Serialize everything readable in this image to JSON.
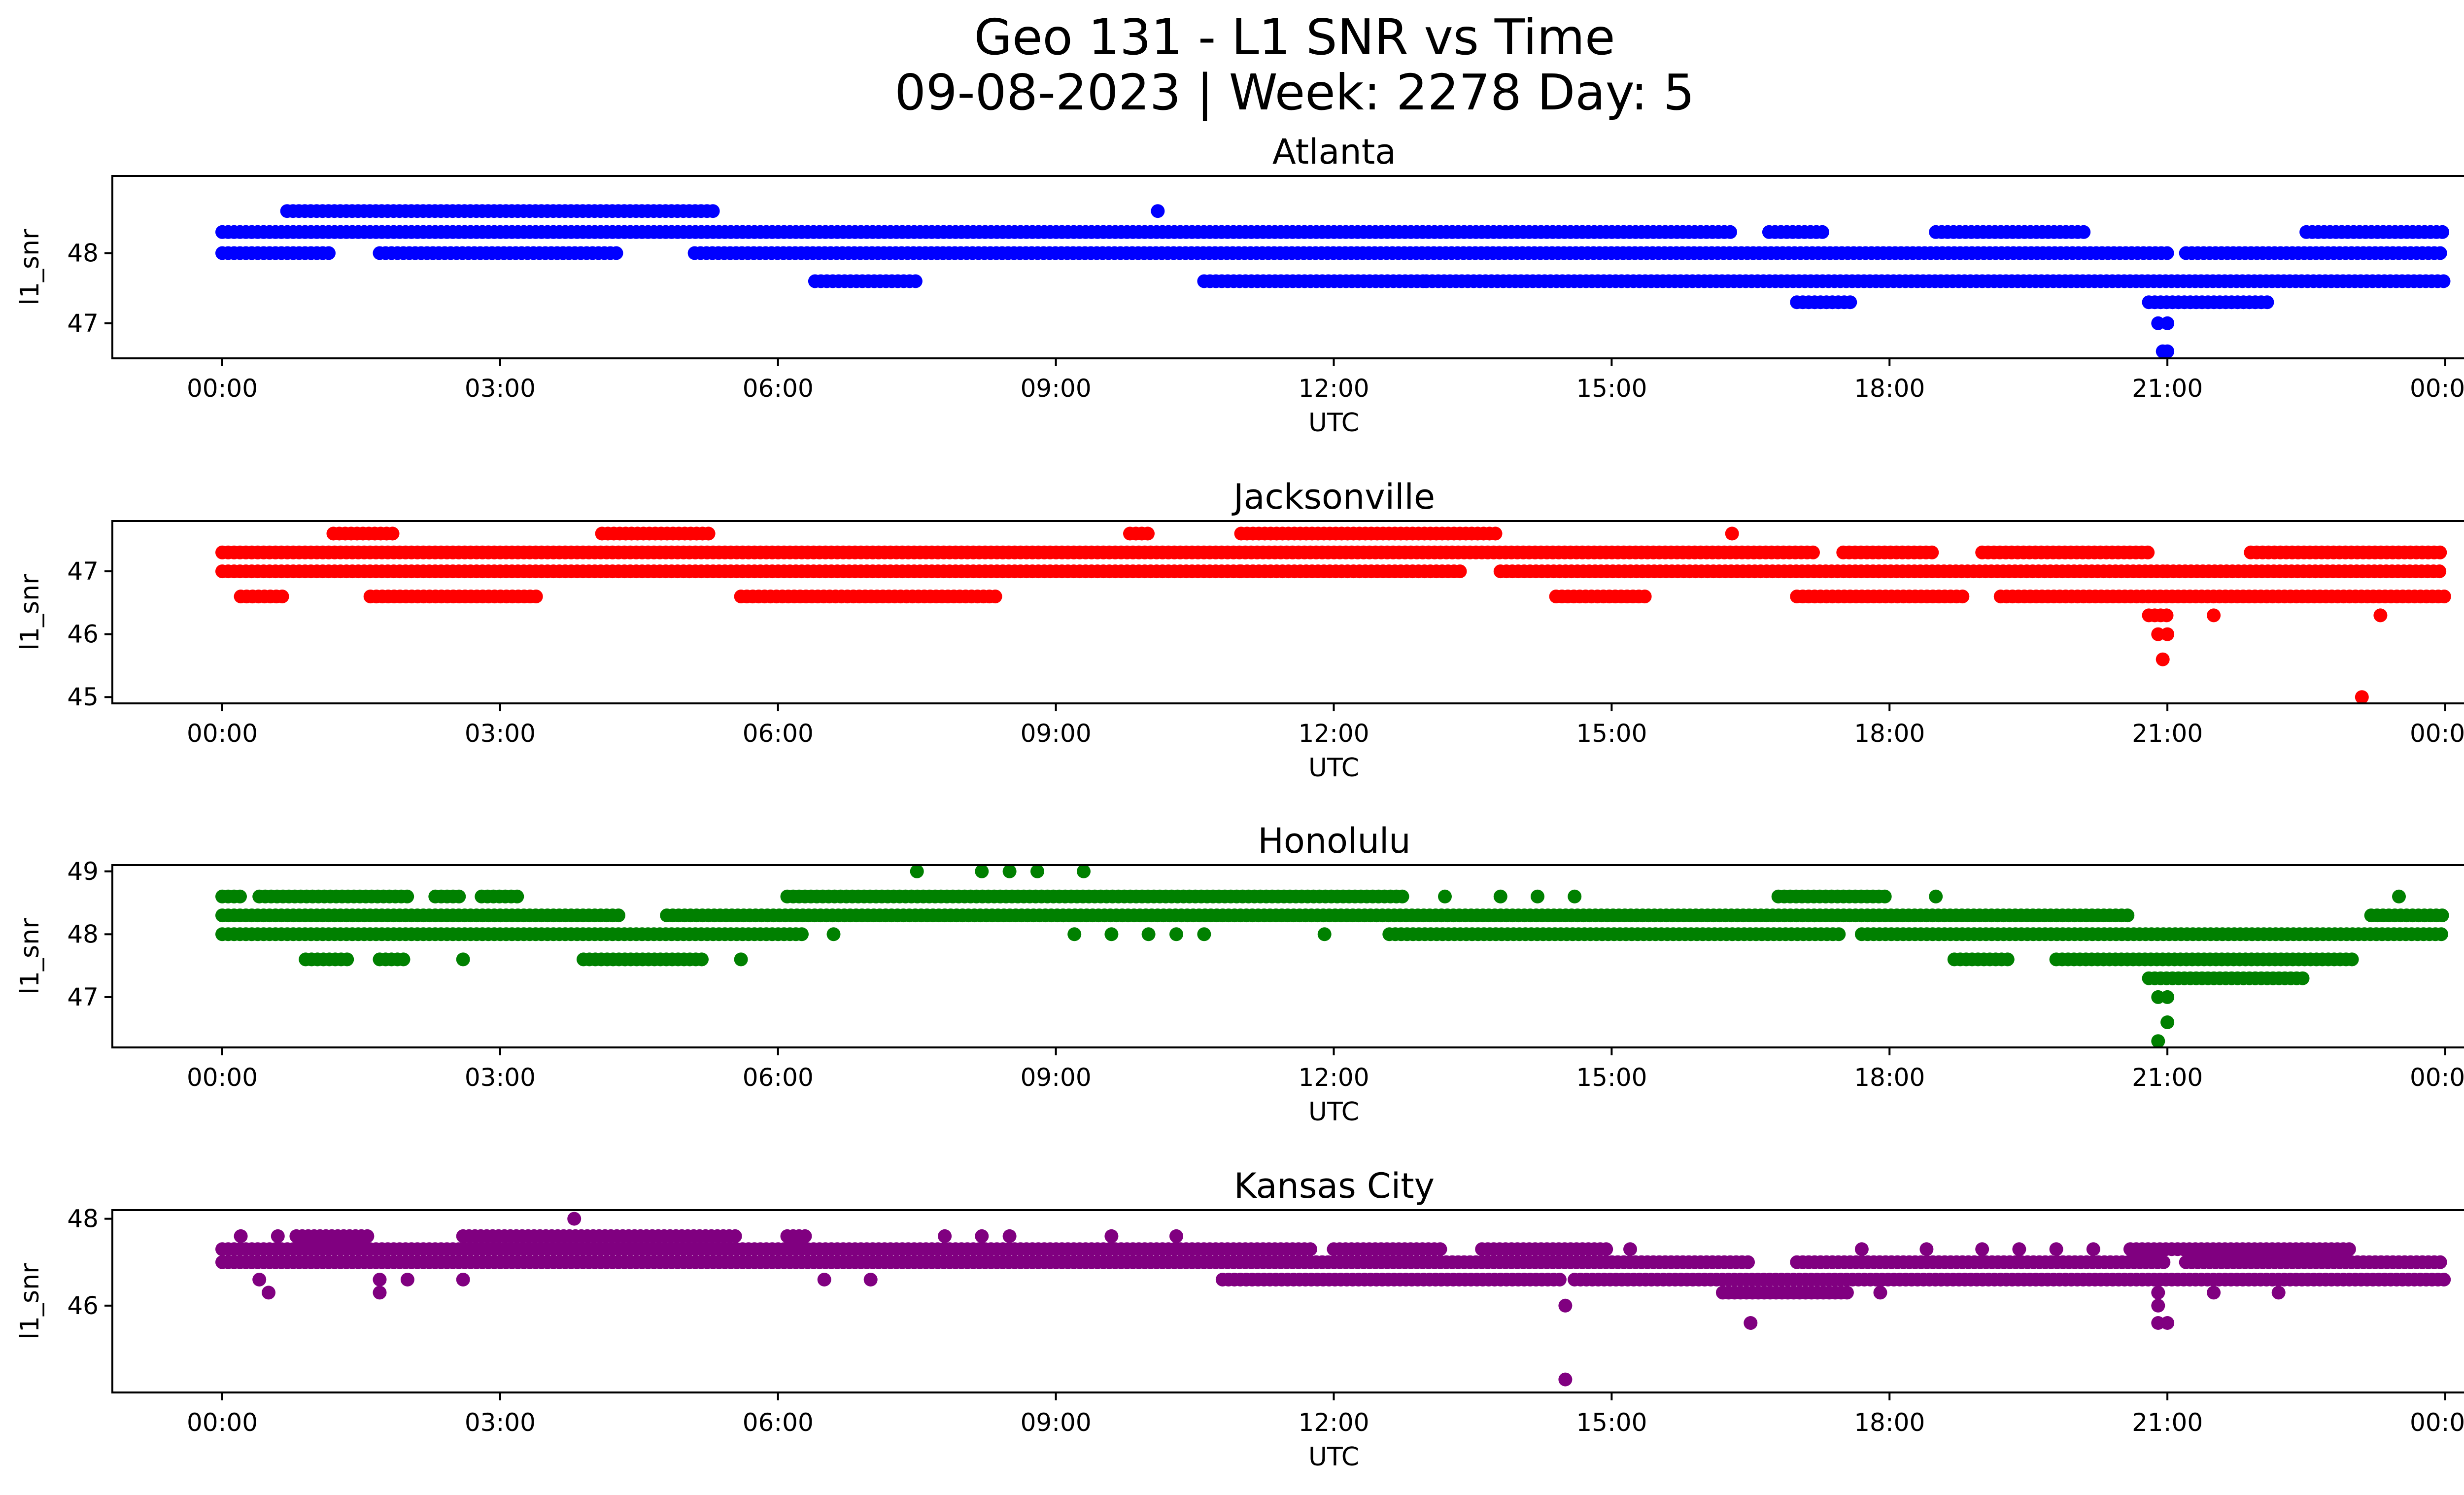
{
  "figure": {
    "title_line1": "Geo 131 - L1 SNR vs Time",
    "title_line2": "09-08-2023 | Week: 2278 Day: 5"
  },
  "chart_data": [
    {
      "type": "scatter",
      "title": "Atlanta",
      "xlabel": "UTC",
      "ylabel": "l1_snr",
      "color": "#0000ff",
      "xlim": [
        0,
        24
      ],
      "ylim": [
        46.5,
        49.1
      ],
      "x_ticks": [
        "00:00",
        "03:00",
        "06:00",
        "09:00",
        "12:00",
        "15:00",
        "18:00",
        "21:00",
        "00:00"
      ],
      "y_ticks": [
        47,
        48
      ],
      "bands": [
        {
          "y": 48.6,
          "segments": [
            [
              0.7,
              5.3
            ]
          ]
        },
        {
          "y": 48.6,
          "points": [
            10.1
          ]
        },
        {
          "y": 48.3,
          "segments": [
            [
              0.0,
              16.3
            ],
            [
              16.7,
              17.3
            ],
            [
              18.5,
              20.1
            ],
            [
              22.5,
              24.0
            ]
          ]
        },
        {
          "y": 48.0,
          "segments": [
            [
              0.0,
              1.2
            ],
            [
              1.7,
              4.3
            ],
            [
              5.1,
              21.0
            ],
            [
              21.2,
              24.0
            ]
          ]
        },
        {
          "y": 47.6,
          "segments": [
            [
              6.4,
              7.5
            ],
            [
              10.6,
              13.0
            ],
            [
              13.0,
              24.0
            ]
          ]
        },
        {
          "y": 47.3,
          "segments": [
            [
              17.0,
              17.6
            ],
            [
              20.8,
              22.1
            ]
          ]
        },
        {
          "y": 47.0,
          "points": [
            20.9,
            21.0
          ]
        },
        {
          "y": 46.6,
          "points": [
            20.95,
            21.0
          ]
        }
      ]
    },
    {
      "type": "scatter",
      "title": "Jacksonville",
      "xlabel": "UTC",
      "ylabel": "l1_snr",
      "color": "#ff0000",
      "xlim": [
        0,
        24
      ],
      "ylim": [
        44.9,
        47.8
      ],
      "x_ticks": [
        "00:00",
        "03:00",
        "06:00",
        "09:00",
        "12:00",
        "15:00",
        "18:00",
        "21:00",
        "00:00"
      ],
      "y_ticks": [
        45,
        46,
        47
      ],
      "bands": [
        {
          "y": 47.6,
          "segments": [
            [
              1.2,
              1.9
            ],
            [
              4.1,
              5.3
            ],
            [
              9.8,
              10.0
            ],
            [
              11.0,
              13.8
            ]
          ]
        },
        {
          "y": 47.6,
          "points": [
            16.3
          ]
        },
        {
          "y": 47.3,
          "segments": [
            [
              0.0,
              17.2
            ],
            [
              17.5,
              18.5
            ],
            [
              19.0,
              20.8
            ],
            [
              21.9,
              24.0
            ]
          ]
        },
        {
          "y": 47.0,
          "segments": [
            [
              0.0,
              11.0
            ],
            [
              11.0,
              13.4
            ],
            [
              13.8,
              21.0
            ],
            [
              21.0,
              24.0
            ]
          ]
        },
        {
          "y": 46.6,
          "segments": [
            [
              0.2,
              0.7
            ],
            [
              1.6,
              3.4
            ],
            [
              5.6,
              8.4
            ],
            [
              14.4,
              15.4
            ],
            [
              17.0,
              18.8
            ],
            [
              19.2,
              24.0
            ]
          ]
        },
        {
          "y": 46.3,
          "segments": [
            [
              20.8,
              21.0
            ]
          ]
        },
        {
          "y": 46.3,
          "points": [
            21.5,
            23.3
          ]
        },
        {
          "y": 46.0,
          "points": [
            20.9,
            21.0
          ]
        },
        {
          "y": 45.6,
          "points": [
            20.95
          ]
        },
        {
          "y": 45.0,
          "points": [
            23.1
          ]
        }
      ]
    },
    {
      "type": "scatter",
      "title": "Honolulu",
      "xlabel": "UTC",
      "ylabel": "l1_snr",
      "color": "#008000",
      "xlim": [
        0,
        24
      ],
      "ylim": [
        46.2,
        49.1
      ],
      "x_ticks": [
        "00:00",
        "03:00",
        "06:00",
        "09:00",
        "12:00",
        "15:00",
        "18:00",
        "21:00",
        "00:00"
      ],
      "y_ticks": [
        47,
        48,
        49
      ],
      "bands": [
        {
          "y": 49.0,
          "points": [
            7.5,
            8.2,
            8.5,
            8.8,
            9.3
          ]
        },
        {
          "y": 48.6,
          "segments": [
            [
              0.0,
              0.2
            ],
            [
              0.4,
              2.0
            ],
            [
              2.3,
              2.6
            ],
            [
              2.8,
              3.2
            ],
            [
              6.1,
              12.8
            ],
            [
              16.8,
              18.0
            ]
          ]
        },
        {
          "y": 48.6,
          "points": [
            13.2,
            13.8,
            14.2,
            14.6,
            18.5,
            23.5
          ]
        },
        {
          "y": 48.3,
          "segments": [
            [
              0.0,
              4.3
            ],
            [
              4.8,
              20.6
            ],
            [
              23.2,
              24.0
            ]
          ]
        },
        {
          "y": 48.0,
          "segments": [
            [
              0.0,
              6.3
            ],
            [
              12.6,
              17.5
            ],
            [
              17.7,
              24.0
            ]
          ]
        },
        {
          "y": 48.0,
          "points": [
            6.6,
            9.2,
            9.6,
            10.0,
            10.3,
            10.6,
            11.9
          ]
        },
        {
          "y": 47.6,
          "segments": [
            [
              0.9,
              1.4
            ],
            [
              1.7,
              2.0
            ],
            [
              3.9,
              5.2
            ],
            [
              18.7,
              19.3
            ],
            [
              19.8,
              23.0
            ]
          ]
        },
        {
          "y": 47.6,
          "points": [
            2.6,
            5.6
          ]
        },
        {
          "y": 47.3,
          "segments": [
            [
              20.8,
              22.5
            ]
          ]
        },
        {
          "y": 47.0,
          "points": [
            20.9,
            21.0
          ]
        },
        {
          "y": 46.6,
          "points": [
            21.0
          ]
        },
        {
          "y": 46.3,
          "points": [
            20.9
          ]
        }
      ]
    },
    {
      "type": "scatter",
      "title": "Kansas City",
      "xlabel": "UTC",
      "ylabel": "l1_snr",
      "color": "#800080",
      "xlim": [
        0,
        24
      ],
      "ylim": [
        44.0,
        48.2
      ],
      "x_ticks": [
        "00:00",
        "03:00",
        "06:00",
        "09:00",
        "12:00",
        "15:00",
        "18:00",
        "21:00",
        "00:00"
      ],
      "y_ticks": [
        46,
        48
      ],
      "bands": [
        {
          "y": 48.0,
          "points": [
            3.8
          ]
        },
        {
          "y": 47.6,
          "segments": [
            [
              0.8,
              1.6
            ],
            [
              2.6,
              5.6
            ],
            [
              6.1,
              6.3
            ]
          ]
        },
        {
          "y": 47.6,
          "points": [
            0.2,
            0.6,
            7.8,
            8.2,
            8.5,
            9.6,
            10.3
          ]
        },
        {
          "y": 47.3,
          "segments": [
            [
              0.0,
              11.8
            ],
            [
              12.0,
              13.2
            ],
            [
              13.6,
              15.0
            ],
            [
              20.6,
              23.0
            ]
          ]
        },
        {
          "y": 47.3,
          "points": [
            15.2,
            17.7,
            18.4,
            19.0,
            19.4,
            19.8,
            20.2
          ]
        },
        {
          "y": 47.0,
          "segments": [
            [
              0.0,
              16.5
            ],
            [
              17.0,
              21.0
            ],
            [
              21.2,
              24.0
            ]
          ]
        },
        {
          "y": 46.6,
          "segments": [
            [
              10.8,
              14.5
            ],
            [
              14.6,
              24.0
            ]
          ]
        },
        {
          "y": 46.6,
          "points": [
            0.4,
            1.7,
            2.0,
            2.6,
            6.5,
            7.0
          ]
        },
        {
          "y": 46.3,
          "segments": [
            [
              16.2,
              17.6
            ]
          ]
        },
        {
          "y": 46.3,
          "points": [
            0.5,
            1.7,
            17.9,
            20.9,
            21.5,
            22.2
          ]
        },
        {
          "y": 46.0,
          "points": [
            14.5,
            20.9
          ]
        },
        {
          "y": 45.6,
          "points": [
            16.5,
            20.9,
            21.0
          ]
        },
        {
          "y": 44.3,
          "points": [
            14.5
          ]
        }
      ]
    }
  ]
}
